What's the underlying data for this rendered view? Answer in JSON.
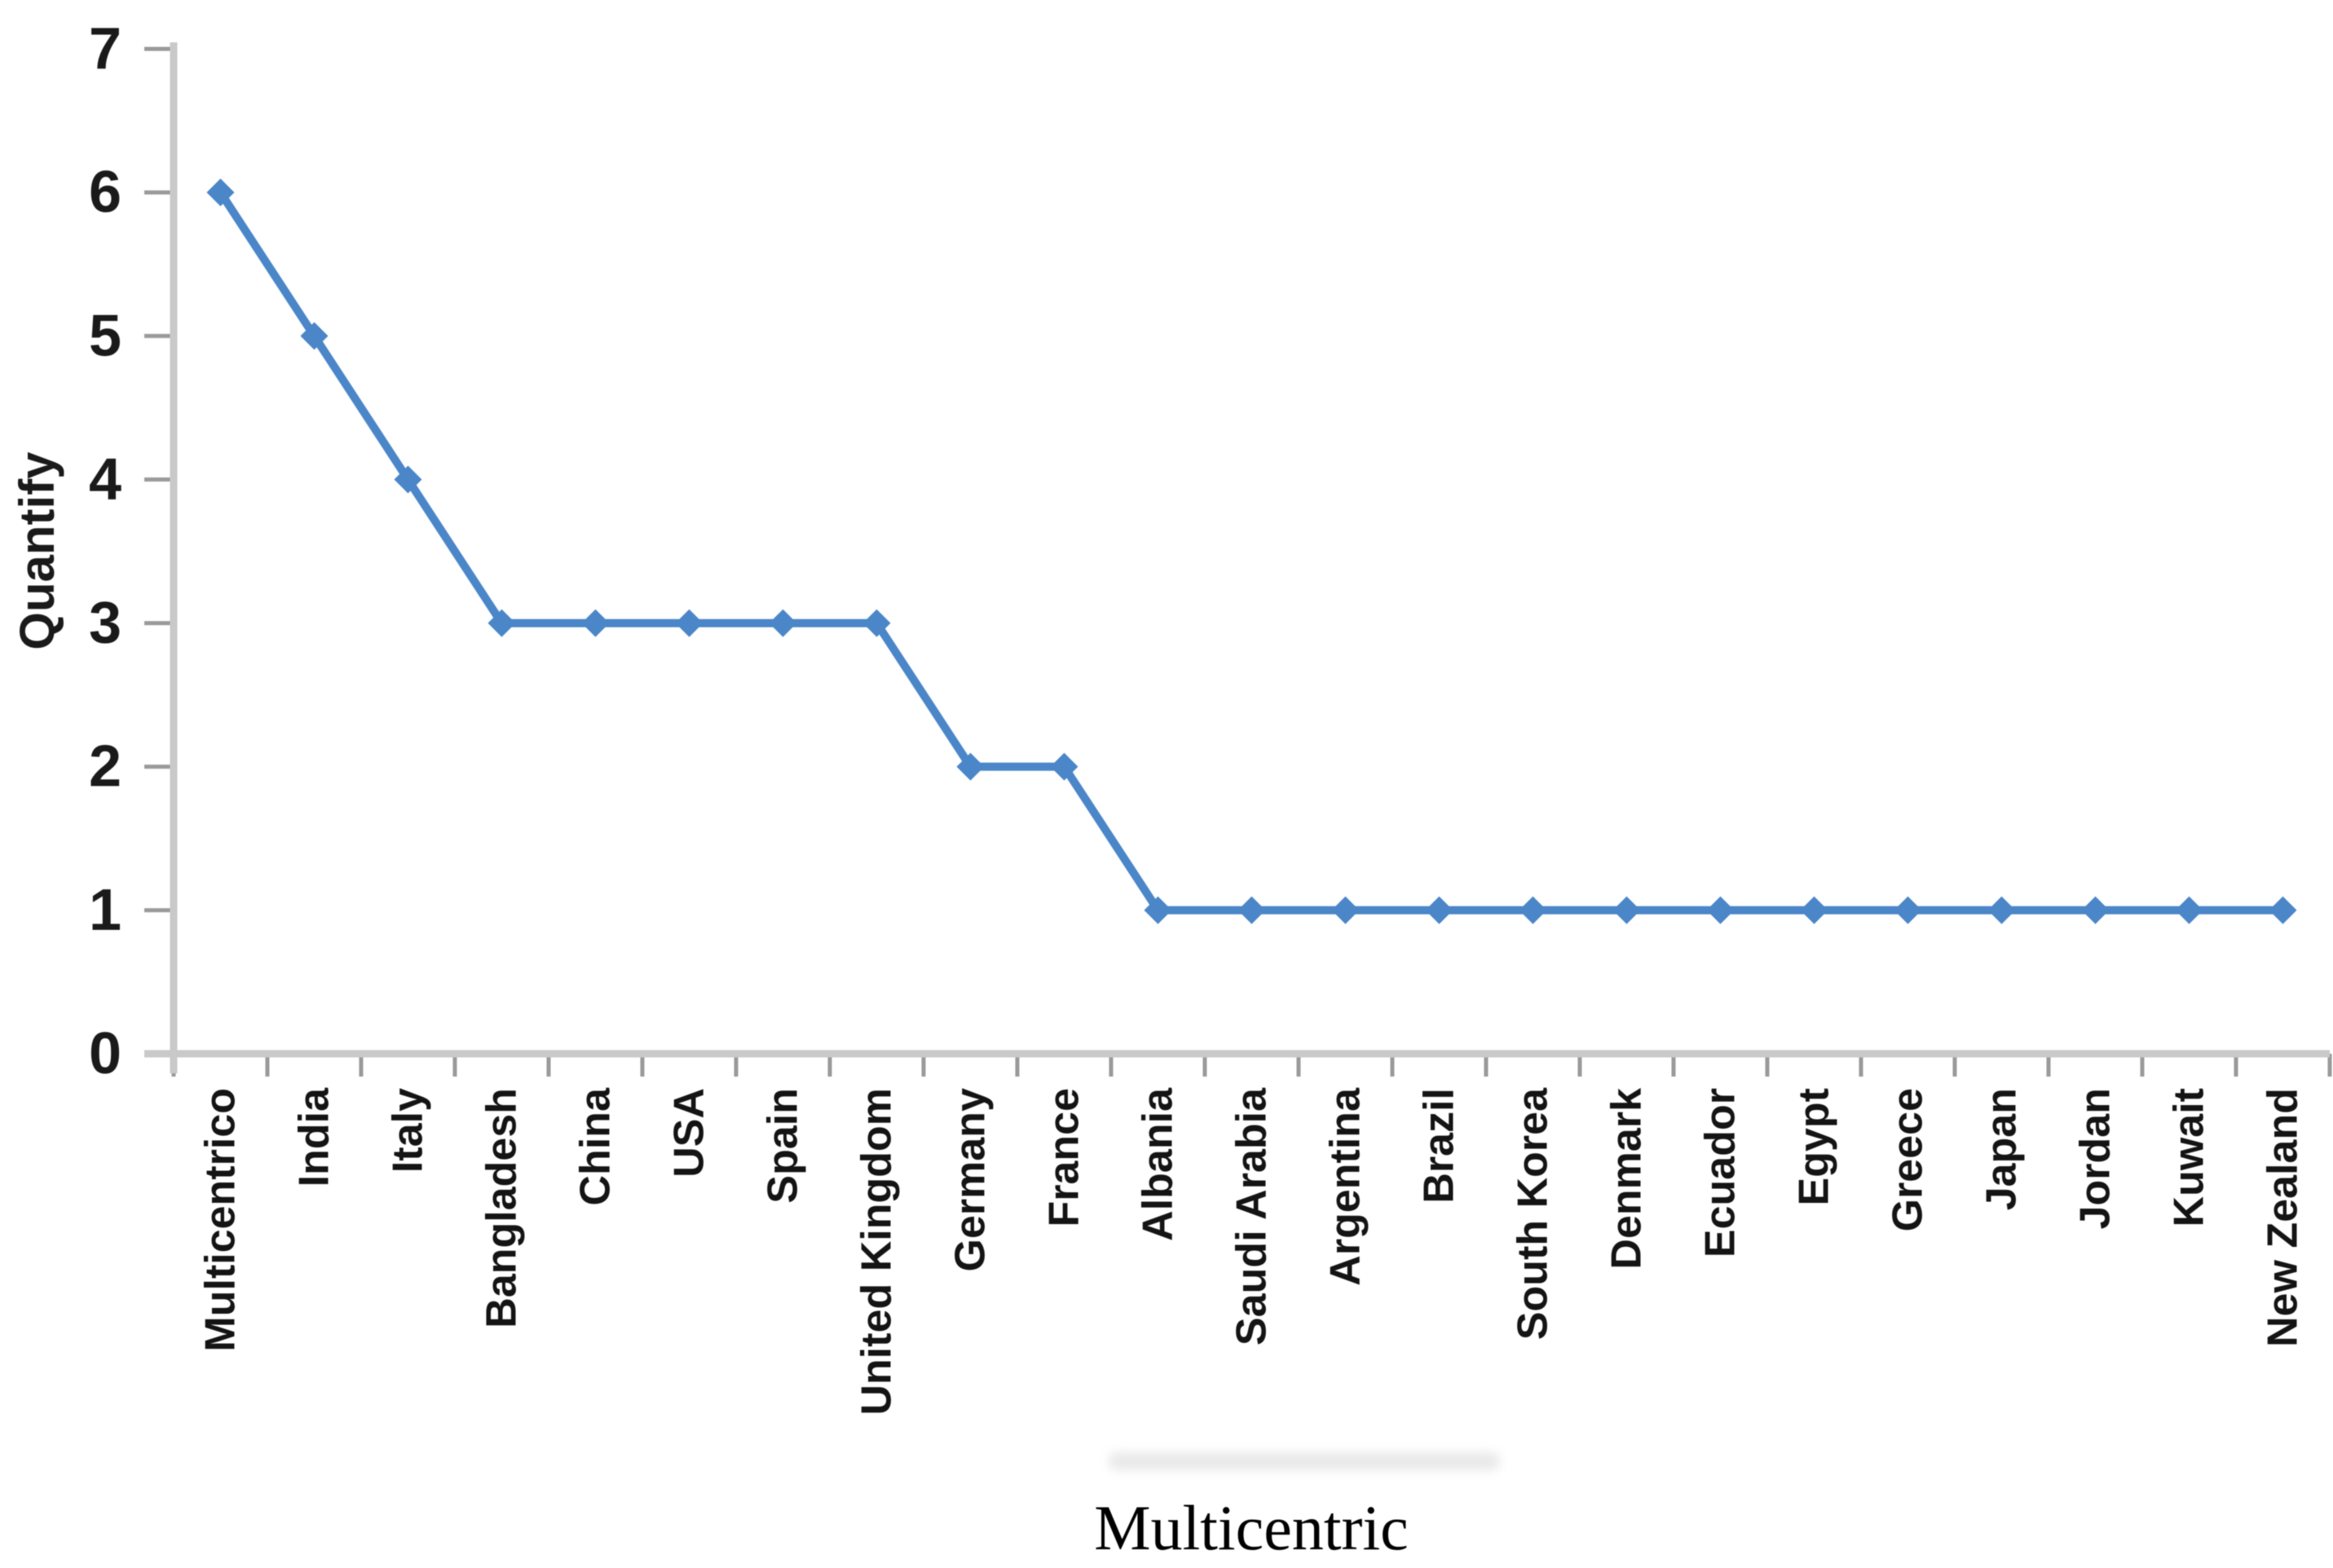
{
  "figure": {
    "background": "#ffffff"
  },
  "chart_data": {
    "type": "line",
    "title": "",
    "xlabel": "Multicentric",
    "ylabel": "Quantify",
    "categories": [
      "Multicentrico",
      "India",
      "Italy",
      "Bangladesh",
      "China",
      "USA",
      "Spain",
      "United Kingdom",
      "Germany",
      "France",
      "Albania",
      "Saudi Arabia",
      "Argentina",
      "Brazil",
      "South Korea",
      "Denmark",
      "Ecuador",
      "Egypt",
      "Greece",
      "Japan",
      "Jordan",
      "Kuwait",
      "New Zealand"
    ],
    "values": [
      6,
      5,
      4,
      3,
      3,
      3,
      3,
      3,
      2,
      2,
      1,
      1,
      1,
      1,
      1,
      1,
      1,
      1,
      1,
      1,
      1,
      1,
      1
    ],
    "ylim": [
      0,
      7
    ],
    "yticks": [
      0,
      1,
      2,
      3,
      4,
      5,
      6,
      7
    ],
    "grid": false,
    "legend": "none",
    "marker": "diamond",
    "line_color": "#4a86c8",
    "axis_color": "#c9c9c9",
    "tick_color": "#9a9a9a",
    "text_color": "#1a1a1a"
  }
}
